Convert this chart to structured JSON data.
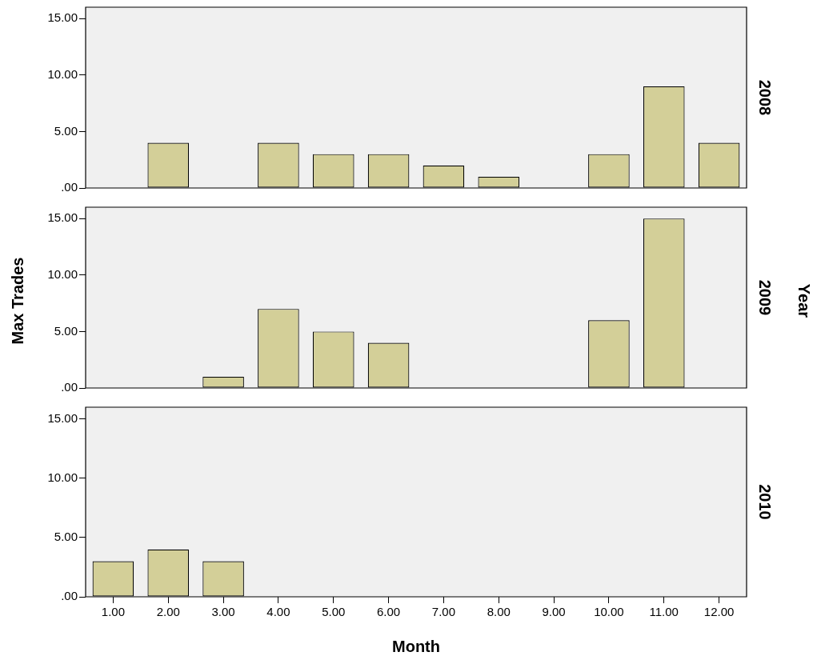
{
  "chart_data": [
    {
      "type": "bar",
      "y2label": "2008",
      "categories": [
        "1.00",
        "2.00",
        "3.00",
        "4.00",
        "5.00",
        "6.00",
        "7.00",
        "8.00",
        "9.00",
        "10.00",
        "11.00",
        "12.00"
      ],
      "values": [
        0,
        4,
        0,
        4,
        3,
        3,
        2,
        1,
        null,
        3,
        9,
        4
      ],
      "color": "#d3cf98",
      "ylim": [
        0,
        16
      ],
      "yticks": [
        {
          "value": 0,
          "label": ".00"
        },
        {
          "value": 5,
          "label": "5.00"
        },
        {
          "value": 10,
          "label": "10.00"
        },
        {
          "value": 15,
          "label": "15.00"
        }
      ],
      "grid": false,
      "tick_labels": "y"
    },
    {
      "type": "bar",
      "y2label": "2009",
      "ylabel": "Max Trades",
      "annotations": [
        "Year"
      ],
      "categories": [
        "1.00",
        "2.00",
        "3.00",
        "4.00",
        "5.00",
        "6.00",
        "7.00",
        "8.00",
        "9.00",
        "10.00",
        "11.00",
        "12.00"
      ],
      "values": [
        null,
        null,
        1,
        7,
        5,
        4,
        null,
        null,
        null,
        6,
        15,
        null
      ],
      "color": "#d3cf98",
      "ylim": [
        0,
        16
      ],
      "yticks": [
        {
          "value": 0,
          "label": ".00"
        },
        {
          "value": 5,
          "label": "5.00"
        },
        {
          "value": 10,
          "label": "10.00"
        },
        {
          "value": 15,
          "label": "15.00"
        }
      ],
      "grid": false,
      "tick_labels": "y"
    },
    {
      "type": "bar",
      "y2label": "2010",
      "xlabel": "Month",
      "categories": [
        "1.00",
        "2.00",
        "3.00",
        "4.00",
        "5.00",
        "6.00",
        "7.00",
        "8.00",
        "9.00",
        "10.00",
        "11.00",
        "12.00"
      ],
      "values": [
        3,
        4,
        3,
        null,
        null,
        null,
        null,
        null,
        null,
        null,
        null,
        null
      ],
      "color": "#d3cf98",
      "ylim": [
        0,
        16
      ],
      "yticks": [
        {
          "value": 0,
          "label": ".00"
        },
        {
          "value": 5,
          "label": "5.00"
        },
        {
          "value": 10,
          "label": "10.00"
        },
        {
          "value": 15,
          "label": "15.00"
        }
      ],
      "grid": false
    }
  ]
}
